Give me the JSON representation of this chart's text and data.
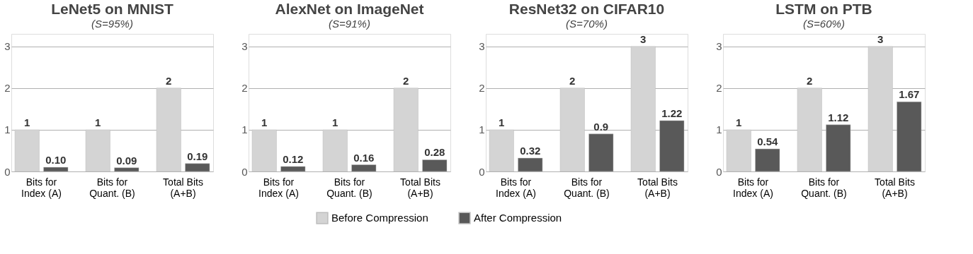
{
  "chart_data": [
    {
      "type": "bar",
      "title": "LeNet5 on MNIST",
      "subtitle": "(S=95%)",
      "categories": [
        "Bits for Index (A)",
        "Bits for Quant. (B)",
        "Total Bits (A+B)"
      ],
      "series": [
        {
          "name": "Before Compression",
          "color": "#d4d4d4",
          "values": [
            1,
            1,
            2
          ],
          "value_labels": [
            "1",
            "1",
            "2"
          ]
        },
        {
          "name": "After Compression",
          "color": "#595959",
          "values": [
            0.1,
            0.09,
            0.19
          ],
          "value_labels": [
            "0.10",
            "0.09",
            "0.19"
          ]
        }
      ],
      "ylim": [
        0,
        3.3
      ],
      "yticks": [
        0,
        1,
        2,
        3
      ],
      "grid": "y",
      "legend": "bottom"
    },
    {
      "type": "bar",
      "title": "AlexNet on ImageNet",
      "subtitle": "(S=91%)",
      "categories": [
        "Bits for Index (A)",
        "Bits for Quant. (B)",
        "Total Bits (A+B)"
      ],
      "series": [
        {
          "name": "Before Compression",
          "color": "#d4d4d4",
          "values": [
            1,
            1,
            2
          ],
          "value_labels": [
            "1",
            "1",
            "2"
          ]
        },
        {
          "name": "After Compression",
          "color": "#595959",
          "values": [
            0.12,
            0.16,
            0.28
          ],
          "value_labels": [
            "0.12",
            "0.16",
            "0.28"
          ]
        }
      ],
      "ylim": [
        0,
        3.3
      ],
      "yticks": [
        0,
        1,
        2,
        3
      ],
      "grid": "y",
      "legend": "bottom"
    },
    {
      "type": "bar",
      "title": "ResNet32 on CIFAR10",
      "subtitle": "(S=70%)",
      "categories": [
        "Bits for Index (A)",
        "Bits for Quant. (B)",
        "Total Bits (A+B)"
      ],
      "series": [
        {
          "name": "Before Compression",
          "color": "#d4d4d4",
          "values": [
            1,
            2,
            3
          ],
          "value_labels": [
            "1",
            "2",
            "3"
          ]
        },
        {
          "name": "After Compression",
          "color": "#595959",
          "values": [
            0.32,
            0.9,
            1.22
          ],
          "value_labels": [
            "0.32",
            "0.9",
            "1.22"
          ]
        }
      ],
      "ylim": [
        0,
        3.3
      ],
      "yticks": [
        0,
        1,
        2,
        3
      ],
      "grid": "y",
      "legend": "bottom"
    },
    {
      "type": "bar",
      "title": "LSTM on PTB",
      "subtitle": "(S=60%)",
      "categories": [
        "Bits for Index (A)",
        "Bits for Quant. (B)",
        "Total Bits (A+B)"
      ],
      "series": [
        {
          "name": "Before Compression",
          "color": "#d4d4d4",
          "values": [
            1,
            2,
            3
          ],
          "value_labels": [
            "1",
            "2",
            "3"
          ]
        },
        {
          "name": "After Compression",
          "color": "#595959",
          "values": [
            0.54,
            1.12,
            1.67
          ],
          "value_labels": [
            "0.54",
            "1.12",
            "1.67"
          ]
        }
      ],
      "ylim": [
        0,
        3.3
      ],
      "yticks": [
        0,
        1,
        2,
        3
      ],
      "grid": "y",
      "legend": "bottom"
    }
  ]
}
